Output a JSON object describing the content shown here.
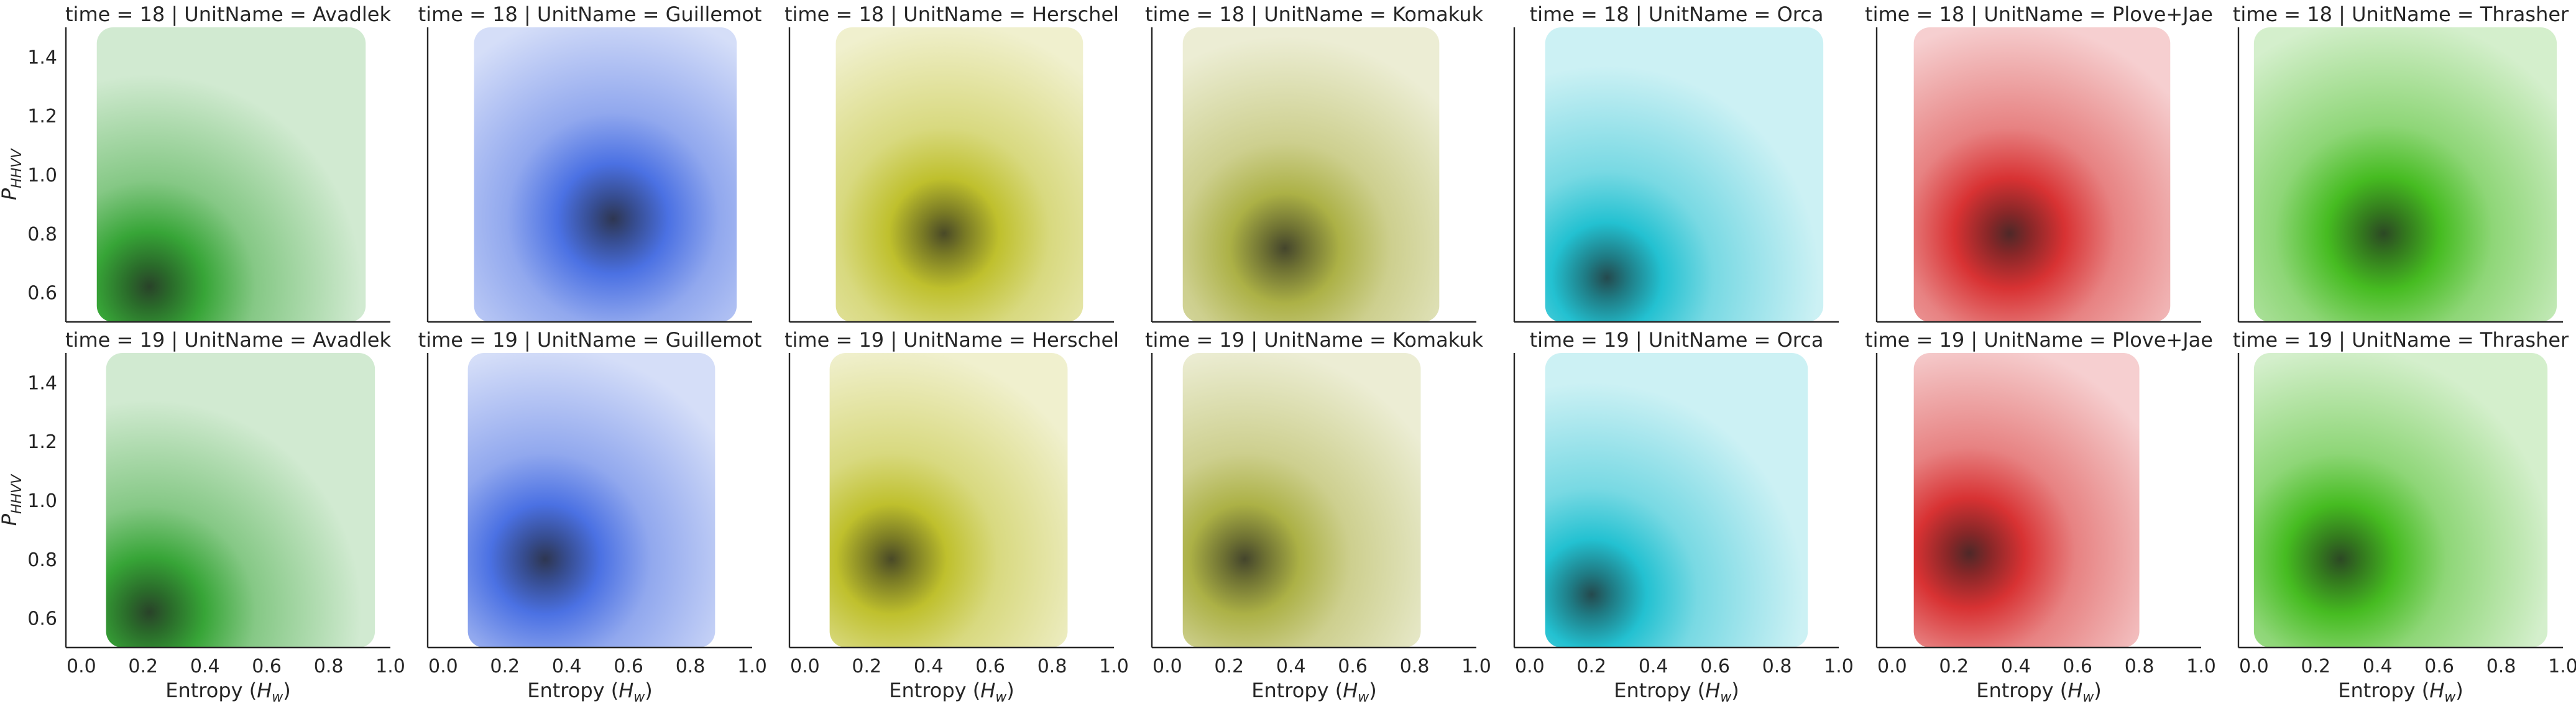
{
  "figure": {
    "xlabel_main": "Entropy (",
    "xlabel_sym": "H",
    "xlabel_sub": "w",
    "xlabel_close": ")",
    "ylabel_main": "P",
    "ylabel_sub": "HHVV"
  },
  "chart_data": {
    "type": "heatmap",
    "facet_rows": [
      "time = 18",
      "time = 19"
    ],
    "facet_cols": [
      "UnitName = Avadlek",
      "UnitName = Guillemot",
      "UnitName = Herschel",
      "UnitName = Komakuk",
      "UnitName = Orca",
      "UnitName = Plove+Jae",
      "UnitName = Thrasher"
    ],
    "title_sep": " | ",
    "xlim": [
      -0.05,
      1.0
    ],
    "ylim": [
      0.5,
      1.5
    ],
    "x_ticks": [
      0.0,
      0.2,
      0.4,
      0.6,
      0.8,
      1.0
    ],
    "x_tick_labels": [
      "0.0",
      "0.2",
      "0.4",
      "0.6",
      "0.8",
      "1.0"
    ],
    "y_ticks": [
      0.6,
      0.8,
      1.0,
      1.2,
      1.4
    ],
    "y_tick_labels": [
      "0.6",
      "0.8",
      "1.0",
      "1.2",
      "1.4"
    ],
    "grid": false,
    "units": [
      {
        "name": "Avadlek",
        "color": "#2ca02c"
      },
      {
        "name": "Guillemot",
        "color": "#4169e1"
      },
      {
        "name": "Herschel",
        "color": "#bcbd22"
      },
      {
        "name": "Komakuk",
        "color": "#a8ad3c"
      },
      {
        "name": "Orca",
        "color": "#17becf"
      },
      {
        "name": "Plove+Jae",
        "color": "#d62728"
      },
      {
        "name": "Thrasher",
        "color": "#3cb815"
      }
    ],
    "density": [
      [
        {
          "peak_x": 0.22,
          "peak_y": 0.62,
          "x_range": [
            0.05,
            0.92
          ],
          "y_range": [
            0.5,
            1.5
          ]
        },
        {
          "peak_x": 0.55,
          "peak_y": 0.85,
          "x_range": [
            0.1,
            0.95
          ],
          "y_range": [
            0.5,
            1.5
          ]
        },
        {
          "peak_x": 0.45,
          "peak_y": 0.8,
          "x_range": [
            0.1,
            0.9
          ],
          "y_range": [
            0.5,
            1.5
          ]
        },
        {
          "peak_x": 0.38,
          "peak_y": 0.75,
          "x_range": [
            0.05,
            0.88
          ],
          "y_range": [
            0.5,
            1.5
          ]
        },
        {
          "peak_x": 0.25,
          "peak_y": 0.65,
          "x_range": [
            0.05,
            0.95
          ],
          "y_range": [
            0.5,
            1.5
          ]
        },
        {
          "peak_x": 0.38,
          "peak_y": 0.8,
          "x_range": [
            0.07,
            0.9
          ],
          "y_range": [
            0.5,
            1.5
          ]
        },
        {
          "peak_x": 0.42,
          "peak_y": 0.8,
          "x_range": [
            0.0,
            0.98
          ],
          "y_range": [
            0.5,
            1.5
          ]
        }
      ],
      [
        {
          "peak_x": 0.22,
          "peak_y": 0.62,
          "x_range": [
            0.08,
            0.95
          ],
          "y_range": [
            0.5,
            1.5
          ]
        },
        {
          "peak_x": 0.33,
          "peak_y": 0.8,
          "x_range": [
            0.08,
            0.88
          ],
          "y_range": [
            0.5,
            1.5
          ]
        },
        {
          "peak_x": 0.28,
          "peak_y": 0.8,
          "x_range": [
            0.08,
            0.85
          ],
          "y_range": [
            0.5,
            1.5
          ]
        },
        {
          "peak_x": 0.25,
          "peak_y": 0.8,
          "x_range": [
            0.05,
            0.82
          ],
          "y_range": [
            0.5,
            1.5
          ]
        },
        {
          "peak_x": 0.2,
          "peak_y": 0.68,
          "x_range": [
            0.05,
            0.9
          ],
          "y_range": [
            0.5,
            1.5
          ]
        },
        {
          "peak_x": 0.25,
          "peak_y": 0.82,
          "x_range": [
            0.07,
            0.8
          ],
          "y_range": [
            0.5,
            1.5
          ]
        },
        {
          "peak_x": 0.28,
          "peak_y": 0.8,
          "x_range": [
            0.0,
            0.95
          ],
          "y_range": [
            0.5,
            1.5
          ]
        }
      ]
    ]
  }
}
